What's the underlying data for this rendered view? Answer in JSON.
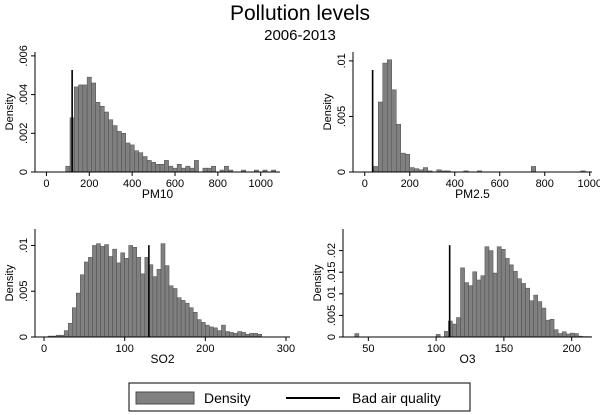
{
  "title": "Pollution levels",
  "subtitle": "2006-2013",
  "legend": {
    "placement": "bottom",
    "items": [
      {
        "label": "Density",
        "kind": "bar"
      },
      {
        "label": "Bad air quality",
        "kind": "line"
      }
    ]
  },
  "colors": {
    "bar_fill": "#808080",
    "bar_stroke": "#4d4d4d",
    "line": "#000000"
  },
  "chart_data": [
    {
      "type": "bar",
      "xlabel": "PM10",
      "ylabel": "Density",
      "xlim": [
        -30,
        1090
      ],
      "ylim": [
        0,
        0.0062
      ],
      "xticks": [
        0,
        200,
        400,
        600,
        800,
        1000
      ],
      "xtick_labels": [
        "0",
        "200",
        "400",
        "600",
        "800",
        "1000"
      ],
      "yticks": [
        0,
        0.002,
        0.004,
        0.006
      ],
      "ytick_labels": [
        "0",
        ".002",
        ".004",
        ".006"
      ],
      "reference_line": 120,
      "bin_start": 90,
      "bin_width": 20,
      "values": [
        0.0003,
        0.0028,
        0.0044,
        0.0045,
        0.0045,
        0.0049,
        0.0046,
        0.0036,
        0.0034,
        0.0031,
        0.0027,
        0.0024,
        0.0021,
        0.002,
        0.0015,
        0.0014,
        0.0011,
        0.001,
        0.0008,
        0.0006,
        0.0005,
        0.0004,
        0.0004,
        0.0006,
        0.0003,
        0.0002,
        0.0004,
        0.0002,
        0.0003,
        0.0002,
        0.0006,
        0,
        0.0002,
        0.0002,
        0.0003,
        0,
        0.0001,
        0.0003,
        0.0001,
        0,
        0,
        0.0001,
        0,
        0,
        0.0001,
        0,
        0.0001,
        0,
        0.0001
      ]
    },
    {
      "type": "bar",
      "xlabel": "PM2.5",
      "ylabel": "Density",
      "xlim": [
        -30,
        1010
      ],
      "ylim": [
        0,
        0.0108
      ],
      "xticks": [
        0,
        200,
        400,
        600,
        800,
        1000
      ],
      "xtick_labels": [
        "0",
        "200",
        "400",
        "600",
        "800",
        "1000"
      ],
      "yticks": [
        0,
        0.005,
        0.01
      ],
      "ytick_labels": [
        "0",
        ".005",
        ".01"
      ],
      "reference_line": 35,
      "bin_start": 40,
      "bin_width": 20,
      "values": [
        0.0005,
        0.0063,
        0.0098,
        0.0101,
        0.0074,
        0.0043,
        0.0017,
        0.0016,
        0.0004,
        0.0003,
        0.0002,
        0.0004,
        0.0001,
        0,
        0.0002,
        0.0001,
        0.0001,
        0,
        0,
        0,
        0.0001,
        0,
        0,
        0.0001,
        0,
        0,
        0,
        0,
        0,
        0,
        0,
        0,
        0,
        0,
        0,
        0.0005,
        0,
        0,
        0,
        0,
        0,
        0,
        0,
        0,
        0,
        0,
        0.0001
      ]
    },
    {
      "type": "bar",
      "xlabel": "SO2",
      "ylabel": "Density",
      "xlim": [
        -5,
        305
      ],
      "ylim": [
        0,
        0.0118
      ],
      "xticks": [
        0,
        100,
        200,
        300
      ],
      "xtick_labels": [
        "0",
        "100",
        "200",
        "300"
      ],
      "yticks": [
        0,
        0.005,
        0.01
      ],
      "ytick_labels": [
        "0",
        ".005",
        ".01"
      ],
      "reference_line": 130,
      "bin_start": 5,
      "bin_width": 5,
      "values": [
        0.0001,
        0.0001,
        0.0002,
        0.0002,
        0.0007,
        0.0015,
        0.0032,
        0.0048,
        0.0068,
        0.0082,
        0.0087,
        0.01,
        0.0102,
        0.0099,
        0.0101,
        0.0088,
        0.0096,
        0.0081,
        0.0092,
        0.0086,
        0.01,
        0.0098,
        0.0087,
        0.0069,
        0.0087,
        0.0079,
        0.0066,
        0.0074,
        0.0102,
        0.0078,
        0.0056,
        0.0053,
        0.0043,
        0.004,
        0.0037,
        0.0032,
        0.0027,
        0.0019,
        0.0016,
        0.0013,
        0.0011,
        0.001,
        0.0007,
        0.0013,
        0.0006,
        0.0005,
        0.0004,
        0.0006,
        0.0005,
        0.0003,
        0.0004,
        0.0004,
        0.0003
      ]
    },
    {
      "type": "bar",
      "xlabel": "O3",
      "ylabel": "Density",
      "xlim": [
        35,
        215
      ],
      "ylim": [
        0,
        0.025
      ],
      "xticks": [
        50,
        100,
        150,
        200
      ],
      "xtick_labels": [
        "50",
        "100",
        "150",
        "200"
      ],
      "yticks": [
        0,
        0.005,
        0.01,
        0.015,
        0.02
      ],
      "ytick_labels": [
        "0",
        ".005",
        ".01",
        ".015",
        ".02"
      ],
      "reference_line": 110,
      "bin_start": 40,
      "bin_width": 3,
      "values": [
        0.0008,
        0,
        0,
        0,
        0,
        0,
        0,
        0,
        0,
        0,
        0,
        0,
        0,
        0,
        0,
        0,
        0,
        0,
        0,
        0,
        0.0006,
        0,
        0.0013,
        0.0037,
        0.003,
        0.0045,
        0.016,
        0.0126,
        0.0119,
        0.0151,
        0.0132,
        0.0142,
        0.0209,
        0.02,
        0.0148,
        0.0209,
        0.0203,
        0.0182,
        0.0167,
        0.0152,
        0.0135,
        0.0124,
        0.0113,
        0.0084,
        0.0097,
        0.0082,
        0.0067,
        0.0039,
        0.0041,
        0.0017,
        0.0008,
        0.0012,
        0.0007,
        0.0009,
        0.0008,
        0.0002,
        0.0001,
        0.0001
      ]
    }
  ]
}
